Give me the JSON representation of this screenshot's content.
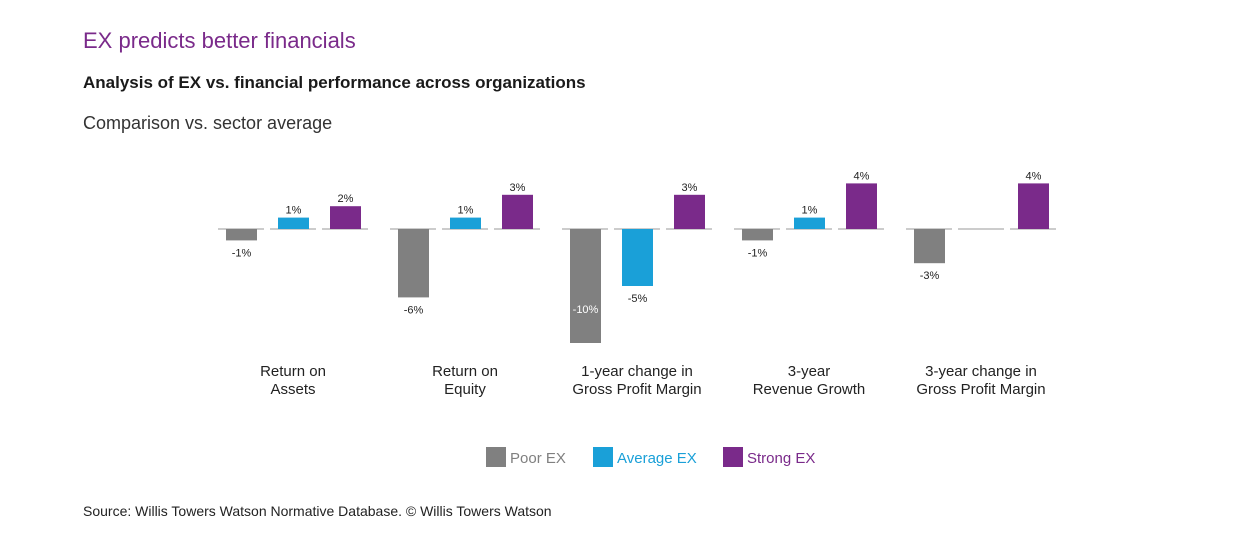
{
  "header": {
    "title": "EX predicts better financials",
    "subtitle": "Analysis of EX vs. financial performance across organizations",
    "caption": "Comparison vs. sector average"
  },
  "footer": {
    "source": "Source: Willis Towers Watson Normative Database. © Willis Towers Watson"
  },
  "colors": {
    "poor": "#808080",
    "average": "#1aa0d8",
    "strong": "#7a2a8a",
    "baseline": "#9a9a9a"
  },
  "chart_data": {
    "type": "bar",
    "title": "EX predicts better financials",
    "ylabel": "Comparison vs. sector average",
    "xlabel": "",
    "unit": "%",
    "ylim": [
      -10,
      4
    ],
    "grid": false,
    "legend_position": "bottom",
    "categories": [
      [
        "Return on",
        "Assets"
      ],
      [
        "Return on",
        "Equity"
      ],
      [
        "1-year change in",
        "Gross Profit Margin"
      ],
      [
        "3-year",
        "Revenue Growth"
      ],
      [
        "3-year change in",
        "Gross Profit Margin"
      ]
    ],
    "series": [
      {
        "name": "Poor EX",
        "key": "poor",
        "values": [
          -1,
          -6,
          -10,
          -1,
          -3
        ],
        "labels": [
          "-1%",
          "-6%",
          "-10%",
          "-1%",
          "-3%"
        ]
      },
      {
        "name": "Average EX",
        "key": "average",
        "values": [
          1,
          1,
          -5,
          1,
          0
        ],
        "labels": [
          "1%",
          "1%",
          "-5%",
          "1%",
          ""
        ]
      },
      {
        "name": "Strong EX",
        "key": "strong",
        "values": [
          2,
          3,
          3,
          4,
          4
        ],
        "labels": [
          "2%",
          "3%",
          "3%",
          "4%",
          "4%"
        ]
      }
    ]
  }
}
